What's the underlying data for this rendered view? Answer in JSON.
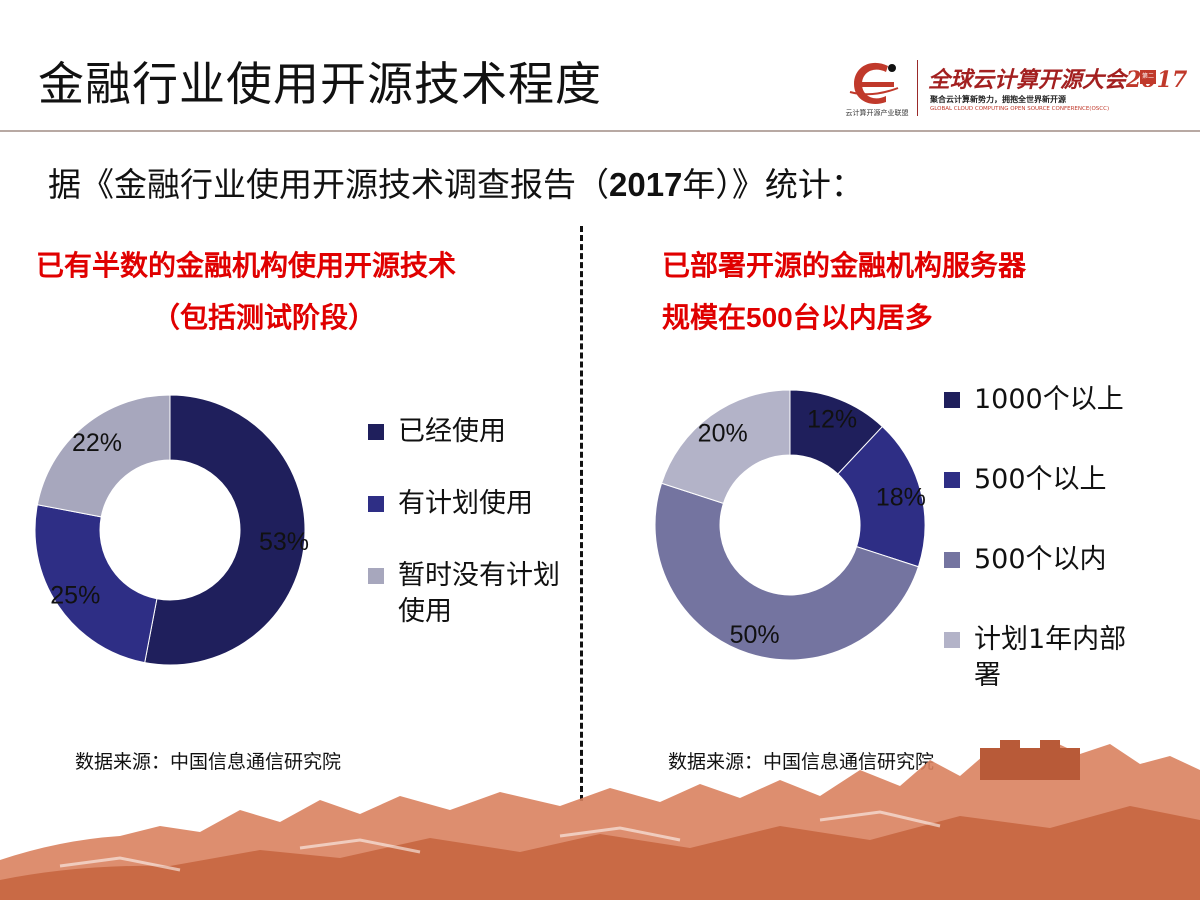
{
  "slide": {
    "title": "金融行业使用开源技术程度",
    "subtitle_prefix": "据《金融行业使用开源技术调查报告（",
    "subtitle_year": "2017",
    "subtitle_suffix": "年）》统计："
  },
  "logo": {
    "org_text": "云计算开源产业联盟",
    "name_text": "全球云计算开源大会",
    "name_year": "2017",
    "badge_text": "第二届",
    "tagline": "聚合云计算新势力，拥抱全世界新开源",
    "tagline_en": "GLOBAL CLOUD COMPUTING OPEN SOURCE CONFERENCE(OSCC)"
  },
  "left": {
    "heading_line1": "已有半数的金融机构使用开源技术",
    "heading_line2": "（包括测试阶段）",
    "source": "数据来源：中国信息通信研究院"
  },
  "right": {
    "heading_line1": "已部署开源的金融机构服务器",
    "heading_line2_pre": "规模在",
    "heading_line2_num": "500",
    "heading_line2_post": "台以内居多",
    "source": "数据来源：中国信息通信研究院"
  },
  "chart_data": [
    {
      "type": "pie",
      "donut": true,
      "categories": [
        "已经使用",
        "有计划使用",
        "暂时没有计划使用"
      ],
      "values": [
        53,
        25,
        22
      ],
      "data_labels": [
        "53%",
        "25%",
        "22%"
      ],
      "colors": [
        "#1f1f5c",
        "#2e2e85",
        "#a7a7bd"
      ],
      "legend_placement": "right",
      "legend_lines": [
        [
          "已经使用"
        ],
        [
          "有计划使用"
        ],
        [
          "暂时没有计划",
          "使用"
        ]
      ]
    },
    {
      "type": "pie",
      "donut": true,
      "categories": [
        "1000个以上",
        "500个以上",
        "500个以内",
        "计划1年内部署"
      ],
      "values": [
        12,
        18,
        50,
        20
      ],
      "data_labels": [
        "12%",
        "18%",
        "50%",
        "20%"
      ],
      "colors": [
        "#1f1f5c",
        "#2e2e85",
        "#7474a0",
        "#b3b3c8"
      ],
      "legend_placement": "right",
      "legend_lines": [
        [
          "1000个以上"
        ],
        [
          "500个以上"
        ],
        [
          "500个以内"
        ],
        [
          "计划1年内部",
          "署"
        ]
      ]
    }
  ]
}
